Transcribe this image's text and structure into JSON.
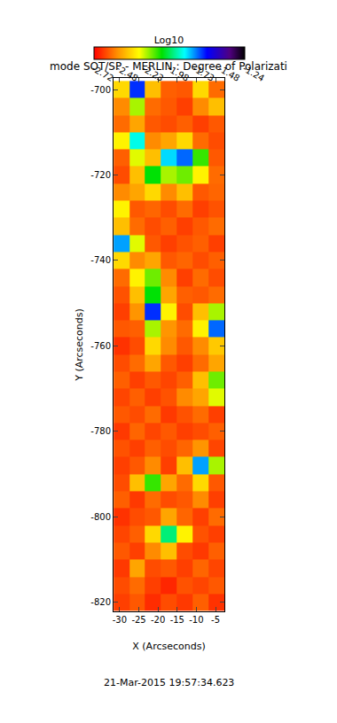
{
  "chart_data": {
    "type": "heatmap",
    "title": "mode SOT/SP - MERLIN : Degree of Polarizati",
    "x_label": "X (Arcseconds)",
    "y_label": "Y (Arcseconds)",
    "annotations": [
      "21-Mar-2015 19:57:34.623"
    ],
    "xlim": [
      -31.6,
      -2.7
    ],
    "xticks": [
      -30,
      -25,
      -20,
      -15,
      -10,
      -5
    ],
    "ylim": [
      -822.1,
      -697.3
    ],
    "yticks": [
      -820,
      -800,
      -780,
      -760,
      -740,
      -720,
      -700
    ],
    "grid": false,
    "x": [
      -29.5,
      -25.4,
      -21.3,
      -17.2,
      -13.1,
      -9.0,
      -4.8
    ],
    "y": [
      -820,
      -816,
      -812,
      -808,
      -804,
      -800,
      -796,
      -792,
      -788,
      -784,
      -780,
      -776,
      -772,
      -768,
      -764,
      -760,
      -756,
      -752,
      -748,
      -744,
      -740,
      -736,
      -732,
      -728,
      -724,
      -720,
      -716,
      -712,
      -708,
      -704,
      -700
    ],
    "cells": [
      [
        -2.62,
        -2.58,
        -2.65,
        -2.6,
        -2.63,
        -2.57,
        -2.64
      ],
      [
        -2.6,
        -2.55,
        -2.62,
        -2.66,
        -2.59,
        -2.61,
        -2.58
      ],
      [
        -2.63,
        -2.45,
        -2.6,
        -2.58,
        -2.62,
        -2.56,
        -2.61
      ],
      [
        -2.58,
        -2.62,
        -2.5,
        -2.4,
        -2.6,
        -2.63,
        -2.57
      ],
      [
        -2.61,
        -2.57,
        -2.35,
        -1.95,
        -2.3,
        -2.59,
        -2.62
      ],
      [
        -2.64,
        -2.6,
        -2.58,
        -2.45,
        -2.56,
        -2.62,
        -2.55
      ],
      [
        -2.57,
        -2.63,
        -2.55,
        -2.6,
        -2.58,
        -2.5,
        -2.62
      ],
      [
        -2.6,
        -2.4,
        -2.1,
        -2.45,
        -2.55,
        -2.35,
        -2.58
      ],
      [
        -2.62,
        -2.58,
        -2.5,
        -2.62,
        -2.4,
        -1.75,
        -2.2
      ],
      [
        -2.59,
        -2.62,
        -2.57,
        -2.6,
        -2.56,
        -2.48,
        -2.61
      ],
      [
        -2.63,
        -2.56,
        -2.61,
        -2.58,
        -2.62,
        -2.6,
        -2.57
      ],
      [
        -2.58,
        -2.6,
        -2.55,
        -2.63,
        -2.59,
        -2.55,
        -2.62
      ],
      [
        -2.61,
        -2.57,
        -2.62,
        -2.59,
        -2.5,
        -2.45,
        -2.25
      ],
      [
        -2.57,
        -2.62,
        -2.58,
        -2.61,
        -2.57,
        -2.4,
        -2.15
      ],
      [
        -2.6,
        -2.55,
        -2.45,
        -2.58,
        -2.62,
        -2.55,
        -2.45
      ],
      [
        -2.64,
        -2.6,
        -2.35,
        -2.5,
        -2.58,
        -2.5,
        -2.38
      ],
      [
        -2.58,
        -2.57,
        -2.2,
        -2.48,
        -2.55,
        -2.3,
        -1.7
      ],
      [
        -2.62,
        -2.48,
        -1.65,
        -2.3,
        -2.6,
        -2.4,
        -2.2
      ],
      [
        -2.59,
        -2.4,
        -2.05,
        -2.45,
        -2.57,
        -2.58,
        -2.55
      ],
      [
        -2.55,
        -2.3,
        -2.15,
        -2.5,
        -2.62,
        -2.55,
        -2.6
      ],
      [
        -2.35,
        -2.5,
        -2.45,
        -2.58,
        -2.56,
        -2.6,
        -2.57
      ],
      [
        -1.75,
        -2.25,
        -2.58,
        -2.62,
        -2.59,
        -2.57,
        -2.62
      ],
      [
        -2.4,
        -2.55,
        -2.6,
        -2.57,
        -2.62,
        -2.58,
        -2.55
      ],
      [
        -2.3,
        -2.58,
        -2.56,
        -2.6,
        -2.55,
        -2.62,
        -2.59
      ],
      [
        -2.5,
        -2.45,
        -2.35,
        -2.5,
        -2.4,
        -2.58,
        -2.56
      ],
      [
        -2.6,
        -2.4,
        -2.05,
        -2.2,
        -2.15,
        -2.3,
        -2.55
      ],
      [
        -2.57,
        -2.25,
        -2.4,
        -1.8,
        -1.7,
        -2.1,
        -2.58
      ],
      [
        -2.3,
        -1.85,
        -2.5,
        -2.45,
        -2.35,
        -2.55,
        -2.6
      ],
      [
        -2.55,
        -2.45,
        -2.58,
        -2.6,
        -2.57,
        -2.62,
        -2.58
      ],
      [
        -2.5,
        -2.2,
        -2.55,
        -2.58,
        -2.62,
        -2.5,
        -2.4
      ],
      [
        -2.35,
        -1.65,
        -2.4,
        -2.57,
        -2.58,
        -2.35,
        -2.55
      ]
    ],
    "colorbar": {
      "title": "Log10",
      "range": [
        -2.72,
        -1.24
      ],
      "ticks": [
        -2.72,
        -2.48,
        -2.23,
        -1.98,
        -1.73,
        -1.48,
        -1.24
      ]
    }
  }
}
